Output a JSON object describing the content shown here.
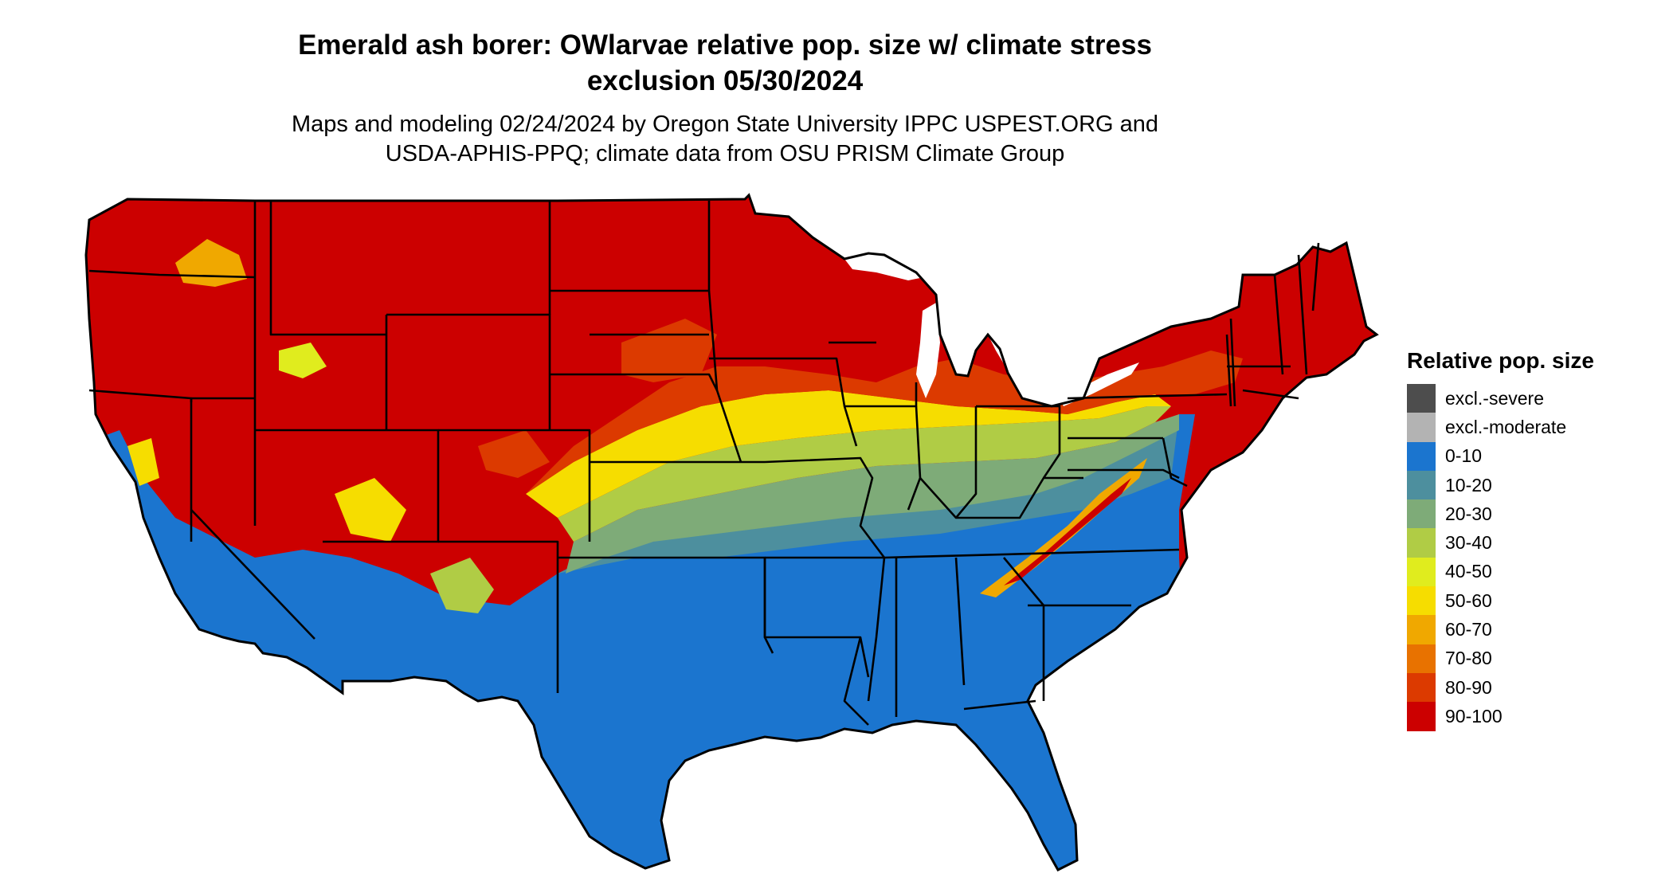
{
  "title_line1": "Emerald ash borer: OWlarvae relative pop. size w/ climate stress",
  "title_line2": "exclusion 05/30/2024",
  "subtitle_line1": "Maps and modeling 02/24/2024 by Oregon State University IPPC USPEST.ORG and",
  "subtitle_line2": "USDA-APHIS-PPQ; climate data from OSU PRISM Climate Group",
  "legend": {
    "title": "Relative pop. size",
    "items": [
      {
        "label": "excl.-severe",
        "color": "#4d4d4d"
      },
      {
        "label": "excl.-moderate",
        "color": "#b3b3b3"
      },
      {
        "label": "0-10",
        "color": "#1b75cf"
      },
      {
        "label": "10-20",
        "color": "#4d8f9e"
      },
      {
        "label": "20-30",
        "color": "#7eab78"
      },
      {
        "label": "30-40",
        "color": "#b0cc45"
      },
      {
        "label": "40-50",
        "color": "#e0ec1e"
      },
      {
        "label": "50-60",
        "color": "#f6dd00"
      },
      {
        "label": "60-70",
        "color": "#f0a800"
      },
      {
        "label": "70-80",
        "color": "#e87200"
      },
      {
        "label": "80-90",
        "color": "#dc3a00"
      },
      {
        "label": "90-100",
        "color": "#cc0000"
      }
    ]
  }
}
